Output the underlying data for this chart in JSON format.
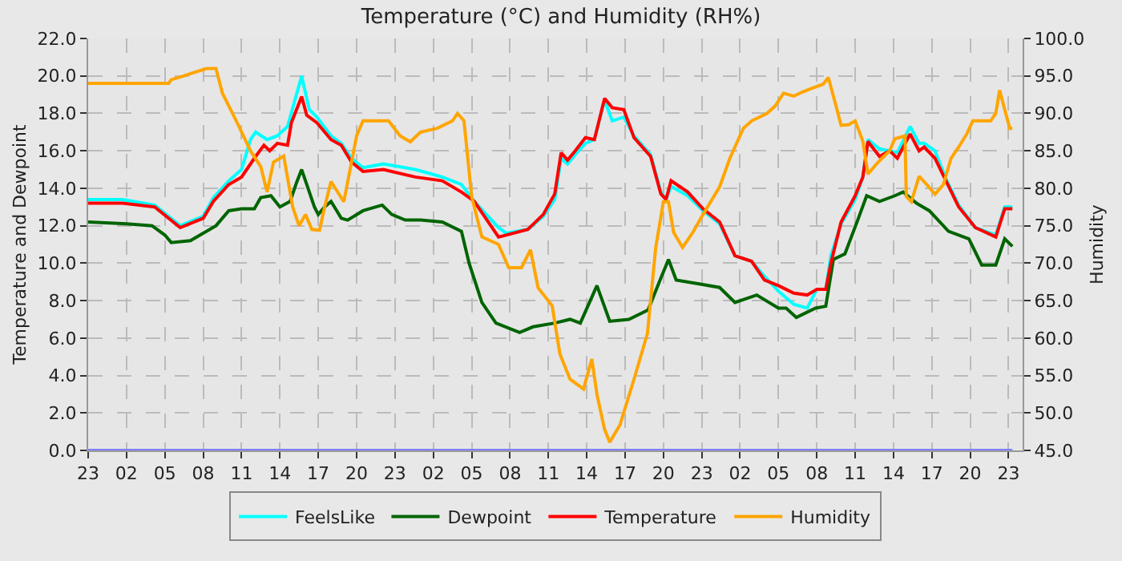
{
  "chart_data": {
    "type": "line",
    "title": "Temperature (°C) and Humidity (RH%)",
    "ylabel": "Temperature and Dewpoint",
    "y2label": "Humidity",
    "xlim": [
      "--01-01T23:00",
      "--01-05T00:06"
    ],
    "ylim": [
      0,
      22
    ],
    "y2lim": [
      45,
      100
    ],
    "xticks": [
      {
        "value": "--01-01T23:00",
        "label": "23"
      },
      {
        "value": "--01-02T02:00",
        "label": "02"
      },
      {
        "value": "--01-02T05:00",
        "label": "05"
      },
      {
        "value": "--01-02T08:00",
        "label": "08"
      },
      {
        "value": "--01-02T11:00",
        "label": "11"
      },
      {
        "value": "--01-02T14:00",
        "label": "14"
      },
      {
        "value": "--01-02T17:00",
        "label": "17"
      },
      {
        "value": "--01-02T20:00",
        "label": "20"
      },
      {
        "value": "--01-02T23:00",
        "label": "23"
      },
      {
        "value": "--01-03T02:00",
        "label": "02"
      },
      {
        "value": "--01-03T05:00",
        "label": "05"
      },
      {
        "value": "--01-03T08:00",
        "label": "08"
      },
      {
        "value": "--01-03T11:00",
        "label": "11"
      },
      {
        "value": "--01-03T14:00",
        "label": "14"
      },
      {
        "value": "--01-03T17:00",
        "label": "17"
      },
      {
        "value": "--01-03T20:00",
        "label": "20"
      },
      {
        "value": "--01-03T23:00",
        "label": "23"
      },
      {
        "value": "--01-04T02:00",
        "label": "02"
      },
      {
        "value": "--01-04T05:00",
        "label": "05"
      },
      {
        "value": "--01-04T08:00",
        "label": "08"
      },
      {
        "value": "--01-04T11:00",
        "label": "11"
      },
      {
        "value": "--01-04T14:00",
        "label": "14"
      },
      {
        "value": "--01-04T17:00",
        "label": "17"
      },
      {
        "value": "--01-04T20:00",
        "label": "20"
      },
      {
        "value": "--01-04T23:00",
        "label": "23"
      }
    ],
    "yticks": [
      {
        "value": 0,
        "label": "0.0"
      },
      {
        "value": 2,
        "label": "2.0"
      },
      {
        "value": 4,
        "label": "4.0"
      },
      {
        "value": 6,
        "label": "6.0"
      },
      {
        "value": 8,
        "label": "8.0"
      },
      {
        "value": 10,
        "label": "10.0"
      },
      {
        "value": 12,
        "label": "12.0"
      },
      {
        "value": 14,
        "label": "14.0"
      },
      {
        "value": 16,
        "label": "16.0"
      },
      {
        "value": 18,
        "label": "18.0"
      },
      {
        "value": 20,
        "label": "20.0"
      },
      {
        "value": 22,
        "label": "22.0"
      }
    ],
    "y2ticks": [
      {
        "value": 45,
        "label": "45.0"
      },
      {
        "value": 50,
        "label": "50.0"
      },
      {
        "value": 55,
        "label": "55.0"
      },
      {
        "value": 60,
        "label": "60.0"
      },
      {
        "value": 65,
        "label": "65.0"
      },
      {
        "value": 70,
        "label": "70.0"
      },
      {
        "value": 75,
        "label": "75.0"
      },
      {
        "value": 80,
        "label": "80.0"
      },
      {
        "value": 85,
        "label": "85.0"
      },
      {
        "value": 90,
        "label": "90.0"
      },
      {
        "value": 95,
        "label": "95.0"
      },
      {
        "value": 100,
        "label": "100.0"
      }
    ],
    "grid": true,
    "legend": "bottom",
    "marker": "none",
    "line_style": "solid",
    "series": [
      {
        "name": "FeelsLike",
        "color": "#00ffff",
        "x": [
          "--01-01T23:00",
          "--01-02T01:42",
          "--01-02T04:12",
          "--01-02T06:12",
          "--01-02T08:00",
          "--01-02T08:48",
          "--01-02T10:00",
          "--01-02T11:00",
          "--01-02T11:42",
          "--01-02T12:06",
          "--01-02T13:00",
          "--01-02T13:48",
          "--01-02T14:36",
          "--01-02T15:42",
          "--01-02T16:18",
          "--01-02T16:54",
          "--01-02T18:00",
          "--01-02T18:48",
          "--01-02T19:36",
          "--01-02T20:30",
          "--01-02T22:06",
          "--01-03T00:36",
          "--01-03T02:42",
          "--01-03T04:12",
          "--01-03T05:12",
          "--01-03T07:06",
          "--01-03T07:42",
          "--01-03T09:24",
          "--01-03T10:36",
          "--01-03T11:30",
          "--01-03T12:00",
          "--01-03T12:30",
          "--01-03T13:06",
          "--01-03T13:54",
          "--01-03T14:36",
          "--01-03T15:24",
          "--01-03T16:00",
          "--01-03T16:54",
          "--01-03T17:42",
          "--01-03T19:00",
          "--01-03T19:48",
          "--01-03T20:12",
          "--01-03T20:36",
          "--01-03T21:54",
          "--01-03T23:06",
          "--01-04T00:24",
          "--01-04T01:36",
          "--01-04T02:54",
          "--01-04T03:54",
          "--01-04T05:00",
          "--01-04T06:12",
          "--01-04T07:15",
          "--01-04T08:00",
          "--01-04T08:42",
          "--01-04T09:06",
          "--01-04T09:54",
          "--01-04T11:00",
          "--01-04T11:36",
          "--01-04T12:00",
          "--01-04T12:54",
          "--01-04T13:42",
          "--01-04T14:18",
          "--01-04T15:18",
          "--01-04T16:00",
          "--01-04T16:24",
          "--01-04T17:15",
          "--01-04T18:06",
          "--01-04T19:06",
          "--01-04T20:24",
          "--01-04T22:00",
          "--01-04T22:42",
          "--01-04T23:18"
        ],
        "values": [
          13.4,
          13.4,
          13.1,
          12.0,
          12.5,
          13.5,
          14.4,
          15.0,
          16.6,
          17.0,
          16.6,
          16.8,
          17.3,
          20.0,
          18.2,
          17.8,
          16.8,
          16.4,
          15.6,
          15.1,
          15.3,
          15.0,
          14.6,
          14.2,
          13.3,
          11.9,
          11.6,
          11.8,
          12.5,
          13.4,
          15.6,
          15.3,
          15.8,
          16.4,
          16.6,
          18.7,
          17.6,
          17.8,
          16.8,
          15.8,
          13.8,
          13.4,
          14.1,
          13.6,
          12.8,
          12.1,
          10.4,
          10.1,
          9.3,
          8.5,
          7.8,
          7.6,
          8.6,
          8.6,
          10.4,
          12.1,
          13.4,
          14.6,
          16.6,
          16.1,
          16.0,
          15.9,
          17.3,
          16.4,
          16.4,
          16.0,
          14.5,
          13.1,
          11.9,
          11.5,
          13.0,
          13.0
        ]
      },
      {
        "name": "Dewpoint",
        "color": "#006400",
        "x": [
          "--01-01T23:00",
          "--01-02T02:00",
          "--01-02T04:00",
          "--01-02T05:00",
          "--01-02T05:30",
          "--01-02T07:00",
          "--01-02T08:00",
          "--01-02T09:00",
          "--01-02T10:00",
          "--01-02T11:00",
          "--01-02T12:00",
          "--01-02T12:30",
          "--01-02T13:18",
          "--01-02T14:00",
          "--01-02T14:48",
          "--01-02T15:18",
          "--01-02T15:42",
          "--01-02T16:12",
          "--01-02T16:42",
          "--01-02T17:00",
          "--01-02T17:30",
          "--01-02T18:00",
          "--01-02T18:48",
          "--01-02T19:18",
          "--01-02T20:30",
          "--01-02T22:00",
          "--01-02T22:45",
          "--01-02T23:48",
          "--01-03T01:00",
          "--01-03T02:42",
          "--01-03T04:12",
          "--01-03T04:48",
          "--01-03T05:48",
          "--01-03T06:54",
          "--01-03T08:45",
          "--01-03T09:48",
          "--01-03T11:30",
          "--01-03T12:42",
          "--01-03T13:30",
          "--01-03T14:48",
          "--01-03T15:48",
          "--01-03T17:18",
          "--01-03T18:48",
          "--01-03T19:48",
          "--01-03T20:24",
          "--01-03T21:00",
          "--01-03T22:42",
          "--01-04T00:24",
          "--01-04T01:36",
          "--01-04T03:18",
          "--01-04T05:00",
          "--01-04T05:36",
          "--01-04T06:24",
          "--01-04T07:54",
          "--01-04T08:42",
          "--01-04T09:18",
          "--01-04T10:12",
          "--01-04T11:12",
          "--01-04T11:54",
          "--01-04T12:54",
          "--01-04T14:06",
          "--01-04T14:45",
          "--01-04T15:48",
          "--01-04T16:48",
          "--01-04T18:18",
          "--01-04T19:54",
          "--01-04T20:54",
          "--01-04T22:00",
          "--01-04T22:42",
          "--01-04T23:18"
        ],
        "values": [
          12.2,
          12.1,
          12.0,
          11.5,
          11.1,
          11.2,
          11.6,
          12.0,
          12.8,
          12.9,
          12.9,
          13.5,
          13.6,
          13.0,
          13.3,
          14.3,
          15.0,
          14.0,
          13.0,
          12.6,
          13.0,
          13.3,
          12.4,
          12.3,
          12.8,
          13.1,
          12.6,
          12.3,
          12.3,
          12.2,
          11.7,
          10.0,
          7.9,
          6.8,
          6.3,
          6.6,
          6.8,
          7.0,
          6.8,
          8.8,
          6.9,
          7.0,
          7.5,
          9.2,
          10.2,
          9.1,
          8.9,
          8.7,
          7.9,
          8.3,
          7.6,
          7.6,
          7.1,
          7.6,
          7.7,
          10.2,
          10.5,
          12.3,
          13.6,
          13.3,
          13.6,
          13.8,
          13.2,
          12.8,
          11.7,
          11.3,
          9.9,
          9.9,
          11.3,
          10.9
        ]
      },
      {
        "name": "Temperature",
        "color": "#ff0000",
        "x": [
          "--01-01T23:00",
          "--01-02T01:42",
          "--01-02T04:12",
          "--01-02T06:12",
          "--01-02T08:00",
          "--01-02T08:48",
          "--01-02T10:00",
          "--01-02T11:00",
          "--01-02T12:00",
          "--01-02T12:45",
          "--01-02T13:12",
          "--01-02T13:48",
          "--01-02T14:36",
          "--01-02T14:54",
          "--01-02T15:42",
          "--01-02T16:06",
          "--01-02T16:54",
          "--01-02T18:00",
          "--01-02T18:48",
          "--01-02T19:36",
          "--01-02T20:30",
          "--01-02T22:06",
          "--01-03T00:36",
          "--01-03T02:42",
          "--01-03T04:12",
          "--01-03T05:12",
          "--01-03T07:06",
          "--01-03T07:42",
          "--01-03T09:24",
          "--01-03T10:36",
          "--01-03T11:30",
          "--01-03T12:00",
          "--01-03T12:30",
          "--01-03T13:06",
          "--01-03T13:54",
          "--01-03T14:36",
          "--01-03T15:24",
          "--01-03T16:00",
          "--01-03T16:54",
          "--01-03T17:42",
          "--01-03T19:00",
          "--01-03T19:48",
          "--01-03T20:12",
          "--01-03T20:36",
          "--01-03T21:54",
          "--01-03T23:06",
          "--01-04T00:24",
          "--01-04T01:36",
          "--01-04T02:54",
          "--01-04T03:54",
          "--01-04T05:00",
          "--01-04T06:12",
          "--01-04T07:15",
          "--01-04T08:00",
          "--01-04T08:42",
          "--01-04T09:06",
          "--01-04T09:54",
          "--01-04T11:00",
          "--01-04T11:36",
          "--01-04T12:00",
          "--01-04T12:54",
          "--01-04T13:42",
          "--01-04T14:18",
          "--01-04T15:18",
          "--01-04T16:00",
          "--01-04T16:24",
          "--01-04T17:15",
          "--01-04T18:06",
          "--01-04T19:06",
          "--01-04T20:24",
          "--01-04T22:00",
          "--01-04T22:42",
          "--01-04T23:18"
        ],
        "values": [
          13.2,
          13.2,
          13.0,
          11.9,
          12.4,
          13.3,
          14.2,
          14.6,
          15.6,
          16.3,
          16.0,
          16.4,
          16.3,
          17.5,
          18.9,
          17.9,
          17.5,
          16.6,
          16.3,
          15.4,
          14.9,
          15.0,
          14.6,
          14.4,
          13.8,
          13.3,
          11.4,
          11.5,
          11.8,
          12.6,
          13.7,
          15.9,
          15.5,
          16.0,
          16.7,
          16.6,
          18.8,
          18.3,
          18.2,
          16.7,
          15.7,
          13.7,
          13.4,
          14.4,
          13.8,
          12.9,
          12.2,
          10.4,
          10.1,
          9.1,
          8.8,
          8.4,
          8.3,
          8.6,
          8.6,
          10.0,
          12.2,
          13.6,
          14.6,
          16.5,
          15.7,
          16.0,
          15.6,
          16.9,
          16.0,
          16.2,
          15.6,
          14.4,
          13.0,
          11.9,
          11.4,
          12.9,
          12.9
        ]
      },
      {
        "name": "Humidity",
        "color": "#ffa500",
        "axis": "y2",
        "x": [
          "--01-01T23:00",
          "--01-02T05:18",
          "--01-02T05:30",
          "--01-02T06:30",
          "--01-02T07:00",
          "--01-02T08:18",
          "--01-02T09:00",
          "--01-02T09:30",
          "--01-02T10:00",
          "--01-02T10:42",
          "--01-02T11:42",
          "--01-02T12:30",
          "--01-02T13:00",
          "--01-02T13:30",
          "--01-02T14:18",
          "--01-02T15:00",
          "--01-02T15:30",
          "--01-02T16:00",
          "--01-02T16:30",
          "--01-02T17:06",
          "--01-02T17:30",
          "--01-02T18:00",
          "--01-02T19:00",
          "--01-02T20:00",
          "--01-02T20:30",
          "--01-02T22:30",
          "--01-02T23:24",
          "--01-03T00:12",
          "--01-03T01:00",
          "--01-03T02:18",
          "--01-03T03:30",
          "--01-03T03:54",
          "--01-03T04:24",
          "--01-03T05:00",
          "--01-03T05:48",
          "--01-03T07:06",
          "--01-03T07:54",
          "--01-03T08:54",
          "--01-03T09:36",
          "--01-03T10:12",
          "--01-03T11:18",
          "--01-03T11:54",
          "--01-03T12:42",
          "--01-03T13:45",
          "--01-03T14:24",
          "--01-03T14:48",
          "--01-03T15:24",
          "--01-03T15:48",
          "--01-03T16:36",
          "--01-03T17:42",
          "--01-03T18:45",
          "--01-03T19:24",
          "--01-03T20:00",
          "--01-03T20:24",
          "--01-03T20:48",
          "--01-03T21:30",
          "--01-03T22:18",
          "--01-03T23:06",
          "--01-04T00:24",
          "--01-04T01:12",
          "--01-04T02:15",
          "--01-04T02:54",
          "--01-04T04:06",
          "--01-04T04:45",
          "--01-04T05:24",
          "--01-04T06:12",
          "--01-04T06:48",
          "--01-04T07:42",
          "--01-04T08:30",
          "--01-04T08:54",
          "--01-04T09:30",
          "--01-04T09:54",
          "--01-04T10:30",
          "--01-04T11:00",
          "--01-04T11:36",
          "--01-04T12:00",
          "--01-04T12:42",
          "--01-04T13:06",
          "--01-04T13:42",
          "--01-04T14:06",
          "--01-04T14:54",
          "--01-04T15:00",
          "--01-04T15:24",
          "--01-04T16:00",
          "--01-04T16:36",
          "--01-04T17:15",
          "--01-04T17:54",
          "--01-04T18:30",
          "--01-04T19:06",
          "--01-04T19:45",
          "--01-04T20:12",
          "--01-04T21:36",
          "--01-04T22:00",
          "--01-04T22:18",
          "--01-04T22:42",
          "--01-04T23:06",
          "--01-04T23:18"
        ],
        "values": [
          94.0,
          94.0,
          94.5,
          95.0,
          95.3,
          96.0,
          96.0,
          92.7,
          91.0,
          88.6,
          85.0,
          82.9,
          79.5,
          83.5,
          84.3,
          77.5,
          75.0,
          76.5,
          74.5,
          74.4,
          77.5,
          80.9,
          78.2,
          87.0,
          89.0,
          89.0,
          87.0,
          86.2,
          87.5,
          88.0,
          89.0,
          90.0,
          89.0,
          78.9,
          73.5,
          72.5,
          69.4,
          69.4,
          71.8,
          66.7,
          64.3,
          57.9,
          54.5,
          53.2,
          57.2,
          52.5,
          47.8,
          46.1,
          48.4,
          54.5,
          60.6,
          72.1,
          78.2,
          78.2,
          74.1,
          72.1,
          74.1,
          76.5,
          80.2,
          84.0,
          88.0,
          89.0,
          90.0,
          91.0,
          92.7,
          92.3,
          92.8,
          93.4,
          93.9,
          94.8,
          91.0,
          88.4,
          88.5,
          89.0,
          86.3,
          81.9,
          83.3,
          84.0,
          85.0,
          86.6,
          87.0,
          78.9,
          78.2,
          81.6,
          80.5,
          79.2,
          80.5,
          84.0,
          85.5,
          87.3,
          89.0,
          89.0,
          90.0,
          93.1,
          90.5,
          88.0,
          88.0
        ]
      },
      {
        "color": "#8080ff",
        "x": [
          "--01-01T23:00",
          "--01-04T23:18"
        ],
        "values": [
          0,
          0
        ]
      }
    ]
  }
}
